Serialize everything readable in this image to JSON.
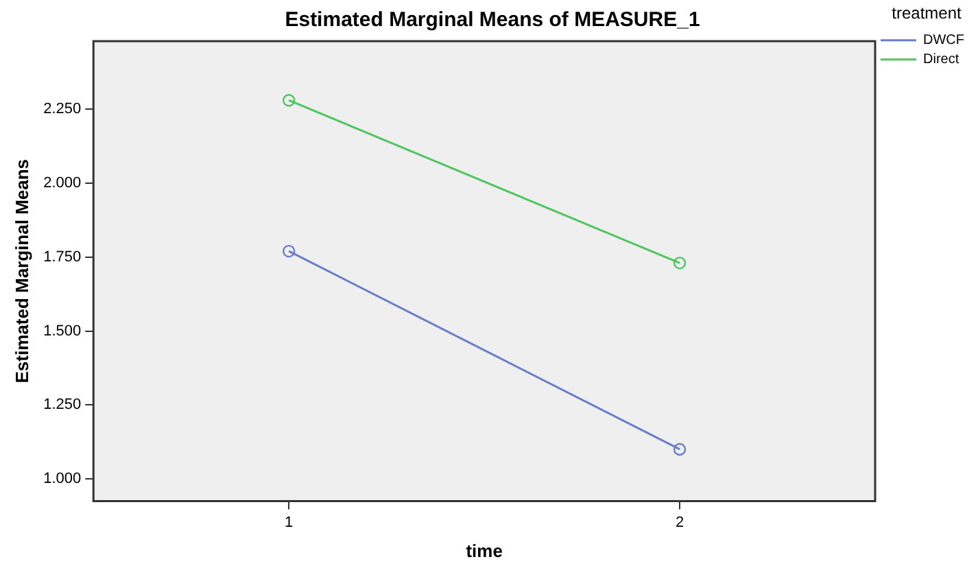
{
  "chart_data": {
    "type": "line",
    "title": "Estimated Marginal Means of MEASURE_1",
    "xlabel": "time",
    "ylabel": "Estimated Marginal Means",
    "legend_title": "treatment",
    "categories": [
      "1",
      "2"
    ],
    "series": [
      {
        "name": "DWCF",
        "color": "#6a7dc8",
        "values": [
          1.77,
          1.1
        ]
      },
      {
        "name": "Direct",
        "color": "#4fc560",
        "values": [
          2.28,
          1.73
        ]
      }
    ],
    "ylim": [
      0.925,
      2.48
    ],
    "yticks": [
      {
        "value": 1,
        "label": "1.000"
      },
      {
        "value": 1.25,
        "label": "1.250"
      },
      {
        "value": 1.5,
        "label": "1.500"
      },
      {
        "value": 1.75,
        "label": "1.750"
      },
      {
        "value": 2,
        "label": "2.000"
      },
      {
        "value": 2.25,
        "label": "2.250"
      }
    ],
    "grid": false,
    "legend": "top right",
    "marker": "circle",
    "line_style": "solid"
  }
}
